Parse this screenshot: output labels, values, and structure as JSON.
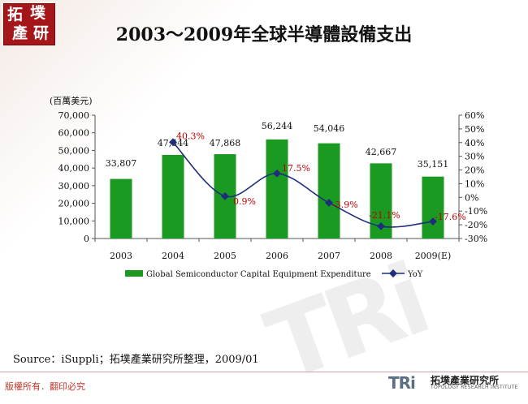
{
  "logo": {
    "chars": [
      "拓",
      "墣",
      "產",
      "研"
    ]
  },
  "title": "2003～2009年全球半導體設備支出",
  "source": "Source：iSuppli；拓墣產業研究所整理，2009/01",
  "copyright": "版權所有．翻印必究",
  "brand": {
    "mark": "TRi",
    "cn": "拓墣產業研究所",
    "en": "TOPOLOGY RESEARCH INSTITUTE"
  },
  "colors": {
    "bar": "#1b9a22",
    "line": "#1f2e7a",
    "yoy_label": "#c00000"
  },
  "chart_data": {
    "type": "bar",
    "unit_label": "(百萬美元)",
    "categories": [
      "2003",
      "2004",
      "2005",
      "2006",
      "2007",
      "2008",
      "2009(E)"
    ],
    "series": [
      {
        "name": "Global Semiconductor Capital Equipment Expenditure",
        "type": "bar",
        "axis": "left",
        "values": [
          33807,
          47444,
          47868,
          56244,
          54046,
          42667,
          35151
        ],
        "labels": [
          "33,807",
          "47,444",
          "47,868",
          "56,244",
          "54,046",
          "42,667",
          "35,151"
        ]
      },
      {
        "name": "YoY",
        "type": "line",
        "axis": "right",
        "values": [
          null,
          40.3,
          0.9,
          17.5,
          -3.9,
          -21.1,
          -17.6
        ],
        "labels": [
          "",
          "40.3%",
          "0.9%",
          "17.5%",
          "-3.9%",
          "-21.1%",
          "-17.6%"
        ]
      }
    ],
    "y_left": {
      "min": 0,
      "max": 70000,
      "ticks": [
        "0",
        "10,000",
        "20,000",
        "30,000",
        "40,000",
        "50,000",
        "60,000",
        "70,000"
      ]
    },
    "y_right": {
      "min": -30,
      "max": 60,
      "ticks": [
        "-30%",
        "-20%",
        "-10%",
        "0%",
        "10%",
        "20%",
        "30%",
        "40%",
        "50%",
        "60%"
      ]
    },
    "legend": {
      "position": "bottom",
      "bar_label": "Global Semiconductor Capital Equipment Expenditure",
      "line_label": "YoY"
    }
  }
}
